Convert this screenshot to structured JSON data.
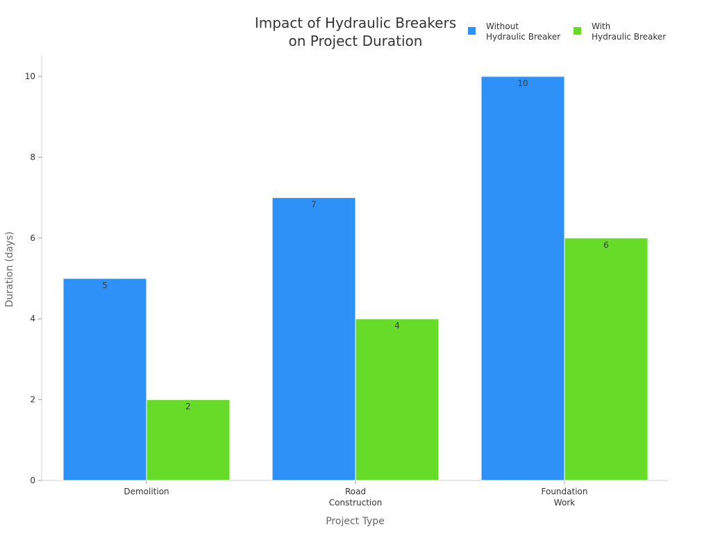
{
  "chart_data": {
    "type": "bar",
    "title": [
      "Impact of Hydraulic Breakers",
      "on Project Duration"
    ],
    "xlabel": "Project Type",
    "ylabel": "Duration (days)",
    "categories": [
      [
        "Demolition"
      ],
      [
        "Road",
        "Construction"
      ],
      [
        "Foundation",
        "Work"
      ]
    ],
    "series": [
      {
        "name": [
          "Without",
          "Hydraulic Breaker"
        ],
        "color": "#2e91f7",
        "values": [
          5,
          7,
          10
        ]
      },
      {
        "name": [
          "With",
          "Hydraulic Breaker"
        ],
        "color": "#66db28",
        "values": [
          2,
          4,
          6
        ]
      }
    ],
    "ylim": [
      0,
      10
    ],
    "yticks": [
      0,
      2,
      4,
      6,
      8,
      10
    ],
    "grid": false,
    "legend_position": "top-right",
    "data_labels": true
  }
}
